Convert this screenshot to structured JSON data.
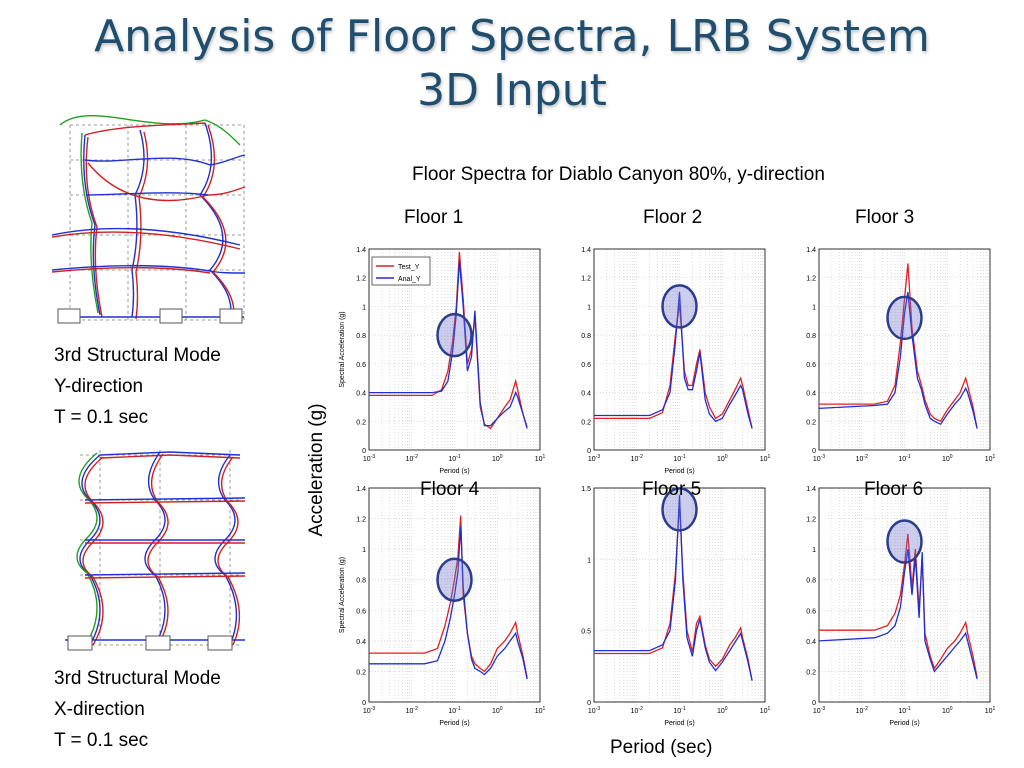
{
  "slide": {
    "title_line1": "Analysis of Floor Spectra, LRB System",
    "title_line2": "3D Input",
    "figure_caption": "Floor Spectra for Diablo Canyon 80%, y-direction",
    "y_axis_label": "Acceleration (g)",
    "x_axis_label": "Period (sec)"
  },
  "modes": [
    {
      "line1": "3rd Structural Mode",
      "line2": "Y-direction",
      "line3": "T = 0.1 sec"
    },
    {
      "line1": "3rd Structural Mode",
      "line2": "X-direction",
      "line3": "T = 0.1 sec"
    }
  ],
  "colors": {
    "title": "#1f4e6e",
    "test": "#e02020",
    "analysis": "#1f2fd6",
    "highlight": "#2a3e8c"
  },
  "chart_data": [
    {
      "type": "line",
      "title": "Floor 1",
      "xscale": "log",
      "xlim": [
        0.001,
        10
      ],
      "ylim": [
        0,
        1.4
      ],
      "yticks": [
        0,
        0.2,
        0.4,
        0.6,
        0.8,
        1,
        1.2,
        1.4
      ],
      "xlabel": "Period (s)",
      "ylabel": "Spectral Acceleration (g)",
      "legend": [
        "Test_Y",
        "Anal_Y"
      ],
      "legend_position": "top-left",
      "highlight_period": 0.1,
      "highlight_acc": 0.8,
      "series": [
        {
          "name": "Test_Y",
          "x": [
            0.001,
            0.03,
            0.05,
            0.07,
            0.09,
            0.11,
            0.13,
            0.16,
            0.2,
            0.25,
            0.3,
            0.4,
            0.5,
            0.7,
            1,
            1.5,
            2,
            2.7,
            3,
            4,
            5
          ],
          "y": [
            0.38,
            0.38,
            0.42,
            0.55,
            0.75,
            1.0,
            1.38,
            1.05,
            0.6,
            0.7,
            0.93,
            0.3,
            0.18,
            0.15,
            0.22,
            0.3,
            0.35,
            0.48,
            0.42,
            0.25,
            0.16
          ]
        },
        {
          "name": "Anal_Y",
          "x": [
            0.001,
            0.03,
            0.05,
            0.07,
            0.09,
            0.11,
            0.13,
            0.16,
            0.2,
            0.25,
            0.3,
            0.4,
            0.5,
            0.7,
            1,
            1.5,
            2,
            2.7,
            3,
            4,
            5
          ],
          "y": [
            0.4,
            0.4,
            0.41,
            0.48,
            0.68,
            0.95,
            1.32,
            1.0,
            0.55,
            0.65,
            0.97,
            0.33,
            0.17,
            0.17,
            0.22,
            0.27,
            0.3,
            0.4,
            0.37,
            0.25,
            0.15
          ]
        }
      ]
    },
    {
      "type": "line",
      "title": "Floor 2",
      "xscale": "log",
      "xlim": [
        0.001,
        10
      ],
      "ylim": [
        0,
        1.4
      ],
      "yticks": [
        0,
        0.2,
        0.4,
        0.6,
        0.8,
        1,
        1.2,
        1.4
      ],
      "xlabel": "Period (s)",
      "ylabel": "",
      "highlight_period": 0.1,
      "highlight_acc": 1.0,
      "series": [
        {
          "name": "Test_Y",
          "x": [
            0.001,
            0.02,
            0.04,
            0.06,
            0.08,
            0.1,
            0.13,
            0.16,
            0.2,
            0.25,
            0.3,
            0.4,
            0.5,
            0.7,
            1,
            1.5,
            2,
            2.7,
            3,
            4,
            5
          ],
          "y": [
            0.22,
            0.22,
            0.26,
            0.45,
            0.8,
            1.02,
            0.55,
            0.45,
            0.45,
            0.6,
            0.7,
            0.4,
            0.3,
            0.22,
            0.25,
            0.35,
            0.42,
            0.5,
            0.45,
            0.28,
            0.15
          ]
        },
        {
          "name": "Anal_Y",
          "x": [
            0.001,
            0.02,
            0.04,
            0.06,
            0.08,
            0.1,
            0.13,
            0.16,
            0.2,
            0.25,
            0.3,
            0.4,
            0.5,
            0.7,
            1,
            1.5,
            2,
            2.7,
            3,
            4,
            5
          ],
          "y": [
            0.24,
            0.24,
            0.28,
            0.4,
            0.75,
            1.1,
            0.5,
            0.42,
            0.42,
            0.55,
            0.68,
            0.35,
            0.25,
            0.2,
            0.22,
            0.32,
            0.38,
            0.45,
            0.42,
            0.25,
            0.15
          ]
        }
      ]
    },
    {
      "type": "line",
      "title": "Floor 3",
      "xscale": "log",
      "xlim": [
        0.001,
        10
      ],
      "ylim": [
        0,
        1.4
      ],
      "yticks": [
        0,
        0.2,
        0.4,
        0.6,
        0.8,
        1,
        1.2,
        1.4
      ],
      "xlabel": "",
      "ylabel": "",
      "highlight_period": 0.1,
      "highlight_acc": 0.92,
      "series": [
        {
          "name": "Test_Y",
          "x": [
            0.001,
            0.02,
            0.04,
            0.06,
            0.08,
            0.1,
            0.12,
            0.15,
            0.2,
            0.25,
            0.3,
            0.4,
            0.5,
            0.7,
            1,
            1.5,
            2,
            2.7,
            3,
            4,
            5
          ],
          "y": [
            0.32,
            0.32,
            0.34,
            0.45,
            0.75,
            1.05,
            1.3,
            0.85,
            0.55,
            0.45,
            0.35,
            0.25,
            0.22,
            0.2,
            0.28,
            0.35,
            0.4,
            0.5,
            0.45,
            0.3,
            0.15
          ]
        },
        {
          "name": "Anal_Y",
          "x": [
            0.001,
            0.02,
            0.04,
            0.06,
            0.08,
            0.1,
            0.12,
            0.15,
            0.2,
            0.25,
            0.3,
            0.4,
            0.5,
            0.7,
            1,
            1.5,
            2,
            2.7,
            3,
            4,
            5
          ],
          "y": [
            0.29,
            0.31,
            0.32,
            0.4,
            0.65,
            0.95,
            1.1,
            0.8,
            0.5,
            0.42,
            0.32,
            0.22,
            0.2,
            0.18,
            0.25,
            0.32,
            0.36,
            0.43,
            0.4,
            0.27,
            0.15
          ]
        }
      ]
    },
    {
      "type": "line",
      "title": "Floor 4",
      "xscale": "log",
      "xlim": [
        0.001,
        10
      ],
      "ylim": [
        0,
        1.4
      ],
      "yticks": [
        0,
        0.2,
        0.4,
        0.6,
        0.8,
        1,
        1.2,
        1.4
      ],
      "xlabel": "Period (s)",
      "ylabel": "Spectral Acceleration (g)",
      "highlight_period": 0.1,
      "highlight_acc": 0.8,
      "series": [
        {
          "name": "Test_Y",
          "x": [
            0.001,
            0.02,
            0.04,
            0.06,
            0.08,
            0.1,
            0.12,
            0.14,
            0.16,
            0.2,
            0.25,
            0.3,
            0.4,
            0.5,
            0.7,
            1,
            1.5,
            2,
            2.7,
            3,
            4,
            5
          ],
          "y": [
            0.32,
            0.32,
            0.35,
            0.5,
            0.65,
            0.8,
            0.95,
            1.22,
            0.7,
            0.45,
            0.3,
            0.25,
            0.22,
            0.2,
            0.25,
            0.35,
            0.4,
            0.45,
            0.52,
            0.45,
            0.3,
            0.16
          ]
        },
        {
          "name": "Anal_Y",
          "x": [
            0.001,
            0.02,
            0.04,
            0.06,
            0.08,
            0.1,
            0.12,
            0.14,
            0.16,
            0.2,
            0.25,
            0.3,
            0.4,
            0.5,
            0.7,
            1,
            1.5,
            2,
            2.7,
            3,
            4,
            5
          ],
          "y": [
            0.25,
            0.25,
            0.27,
            0.4,
            0.55,
            0.7,
            0.85,
            1.15,
            0.75,
            0.45,
            0.28,
            0.22,
            0.2,
            0.18,
            0.22,
            0.3,
            0.35,
            0.4,
            0.45,
            0.4,
            0.28,
            0.15
          ]
        }
      ]
    },
    {
      "type": "line",
      "title": "Floor 5",
      "xscale": "log",
      "xlim": [
        0.001,
        10
      ],
      "ylim": [
        0,
        1.5
      ],
      "yticks": [
        0,
        0.5,
        1,
        1.5
      ],
      "xlabel": "Period (s)",
      "ylabel": "",
      "highlight_period": 0.1,
      "highlight_acc": 1.35,
      "series": [
        {
          "name": "Test_Y",
          "x": [
            0.001,
            0.02,
            0.04,
            0.06,
            0.08,
            0.1,
            0.12,
            0.15,
            0.2,
            0.25,
            0.3,
            0.4,
            0.5,
            0.7,
            1,
            1.5,
            2,
            2.7,
            3,
            4,
            5
          ],
          "y": [
            0.34,
            0.34,
            0.38,
            0.55,
            0.9,
            1.4,
            0.9,
            0.5,
            0.35,
            0.55,
            0.6,
            0.4,
            0.3,
            0.25,
            0.3,
            0.4,
            0.45,
            0.52,
            0.45,
            0.3,
            0.15
          ]
        },
        {
          "name": "Anal_Y",
          "x": [
            0.001,
            0.02,
            0.04,
            0.06,
            0.08,
            0.1,
            0.12,
            0.15,
            0.2,
            0.25,
            0.3,
            0.4,
            0.5,
            0.7,
            1,
            1.5,
            2,
            2.7,
            3,
            4,
            5
          ],
          "y": [
            0.36,
            0.36,
            0.4,
            0.5,
            0.85,
            1.45,
            0.85,
            0.45,
            0.32,
            0.5,
            0.58,
            0.38,
            0.28,
            0.22,
            0.28,
            0.36,
            0.42,
            0.48,
            0.43,
            0.28,
            0.15
          ]
        }
      ]
    },
    {
      "type": "line",
      "title": "Floor 6",
      "xscale": "log",
      "xlim": [
        0.001,
        10
      ],
      "ylim": [
        0,
        1.4
      ],
      "yticks": [
        0,
        0.2,
        0.4,
        0.6,
        0.8,
        1,
        1.2,
        1.4
      ],
      "xlabel": "Period (s)",
      "ylabel": "",
      "highlight_period": 0.1,
      "highlight_acc": 1.05,
      "series": [
        {
          "name": "Test_Y",
          "x": [
            0.001,
            0.02,
            0.04,
            0.06,
            0.08,
            0.1,
            0.12,
            0.15,
            0.18,
            0.22,
            0.26,
            0.3,
            0.4,
            0.5,
            0.7,
            1,
            1.5,
            2,
            2.7,
            3,
            4,
            5
          ],
          "y": [
            0.47,
            0.47,
            0.5,
            0.58,
            0.7,
            0.9,
            1.1,
            0.75,
            1.0,
            0.6,
            0.95,
            0.45,
            0.3,
            0.22,
            0.28,
            0.35,
            0.4,
            0.45,
            0.52,
            0.45,
            0.3,
            0.16
          ]
        },
        {
          "name": "Anal_Y",
          "x": [
            0.001,
            0.02,
            0.04,
            0.06,
            0.08,
            0.1,
            0.12,
            0.15,
            0.18,
            0.22,
            0.26,
            0.3,
            0.4,
            0.5,
            0.7,
            1,
            1.5,
            2,
            2.7,
            3,
            4,
            5
          ],
          "y": [
            0.4,
            0.42,
            0.45,
            0.5,
            0.62,
            0.85,
            1.0,
            0.7,
            0.95,
            0.55,
            0.98,
            0.4,
            0.28,
            0.2,
            0.25,
            0.3,
            0.36,
            0.4,
            0.45,
            0.4,
            0.26,
            0.15
          ]
        }
      ]
    }
  ]
}
